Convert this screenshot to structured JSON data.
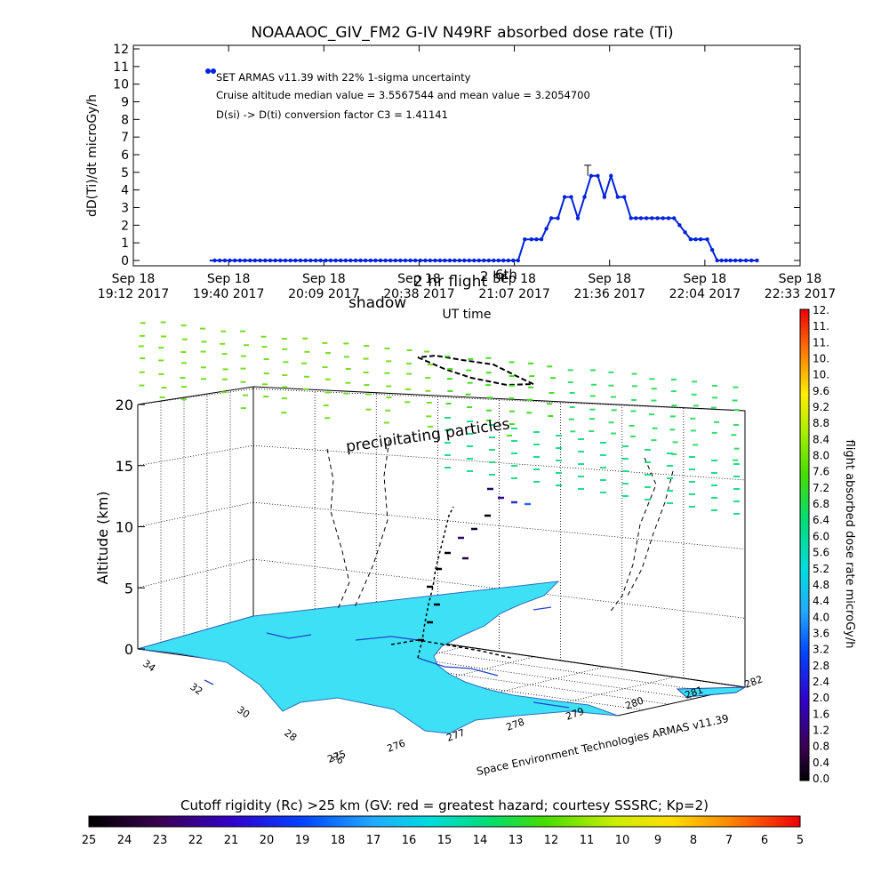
{
  "top_chart": {
    "title": "NOAAAOC_GIV_FM2 G-IV    N49RF  absorbed dose rate (Ti)",
    "ylabel": "dD(Ti)/dt microGy/h",
    "xlabel": "UT time",
    "notes": [
      "SET ARMAS v11.39 with 22% 1-sigma uncertainty",
      "Cruise altitude median value = 3.5567544 and mean value = 3.2054700",
      "D(si) -> D(ti) conversion factor C3 = 1.41141"
    ],
    "overlay_labels": [
      "shadow",
      "2 hr flight",
      "2 hr",
      "6th"
    ],
    "x_ticks": [
      {
        "date": "Sep 18",
        "time": "19:12 2017"
      },
      {
        "date": "Sep 18",
        "time": "19:40 2017"
      },
      {
        "date": "Sep 18",
        "time": "20:09 2017"
      },
      {
        "date": "Sep 18",
        "time": "20:38 2017"
      },
      {
        "date": "Sep 18",
        "time": "21:07 2017"
      },
      {
        "date": "Sep 18",
        "time": "21:36 2017"
      },
      {
        "date": "Sep 18",
        "time": "22:04 2017"
      },
      {
        "date": "Sep 18",
        "time": "22:33 2017"
      }
    ],
    "y_ticks": [
      "0",
      "1",
      "2",
      "3",
      "4",
      "5",
      "6",
      "7",
      "8",
      "9",
      "10",
      "11",
      "12"
    ]
  },
  "chart_data": [
    {
      "type": "line",
      "name": "absorbed dose rate (Ti)",
      "xlabel": "UT time",
      "ylabel": "dD(Ti)/dt microGy/h",
      "ylim": [
        0,
        12
      ],
      "xlim": [
        "19:12",
        "22:33"
      ],
      "series": [
        {
          "name": "SET ARMAS v11.39",
          "color": "#0022dd",
          "x": [
            "19:35",
            "20:10",
            "20:40",
            "21:08",
            "21:10",
            "21:12",
            "21:15",
            "21:18",
            "21:20",
            "21:22",
            "21:24",
            "21:26",
            "21:28",
            "21:30",
            "21:32",
            "21:34",
            "21:36",
            "21:38",
            "21:40",
            "21:42",
            "21:45",
            "21:50",
            "21:55",
            "22:00",
            "22:03",
            "22:05",
            "22:08",
            "22:12",
            "22:15",
            "22:20"
          ],
          "y": [
            0,
            0,
            0,
            0,
            1.2,
            1.2,
            1.2,
            2.4,
            2.4,
            3.6,
            3.6,
            2.4,
            3.6,
            4.8,
            4.8,
            3.6,
            4.8,
            3.6,
            3.6,
            2.4,
            2.4,
            2.4,
            2.4,
            1.2,
            1.2,
            1.2,
            0,
            0,
            0,
            0
          ]
        }
      ],
      "error_bar": {
        "x": "21:29",
        "y": 4.8,
        "upper": 5.4
      }
    },
    {
      "type": "scatter",
      "title": "precipitating particles",
      "ylabel": "Altitude (km)",
      "zlim": [
        0,
        20
      ],
      "z_ticks": [
        "0",
        "5",
        "10",
        "15",
        "20"
      ],
      "lat_ticks": [
        "26",
        "28",
        "30",
        "32",
        "34"
      ],
      "lon_ticks": [
        "275",
        "276",
        "277",
        "278",
        "279",
        "280",
        "281",
        "282"
      ],
      "credit": "Space Environment Technologies ARMAS v11.39"
    }
  ],
  "colorbar_right": {
    "label": "flight absorbed dose rate microGy/h",
    "ticks": [
      "0.0",
      "0.4",
      "0.8",
      "1.2",
      "1.6",
      "2.0",
      "2.4",
      "2.8",
      "3.2",
      "3.6",
      "4.0",
      "4.4",
      "4.8",
      "5.2",
      "5.6",
      "6.0",
      "6.4",
      "6.8",
      "7.2",
      "7.6",
      "8.0",
      "8.4",
      "8.8",
      "9.2",
      "9.6",
      "10.",
      "10.",
      "11.",
      "11.",
      "12."
    ]
  },
  "colorbar_bottom": {
    "label": "Cutoff rigidity (Rc) >25 km (GV: red = greatest hazard; courtesy SSSRC; Kp=2)",
    "ticks": [
      "25",
      "24",
      "23",
      "22",
      "21",
      "20",
      "19",
      "18",
      "17",
      "16",
      "15",
      "14",
      "13",
      "12",
      "11",
      "10",
      "9",
      "8",
      "7",
      "6",
      "5"
    ]
  },
  "colors": {
    "series": "#0022dd",
    "map_fill": "#3ee0f5",
    "green_marks": "#55dd33",
    "axis": "#000000"
  }
}
